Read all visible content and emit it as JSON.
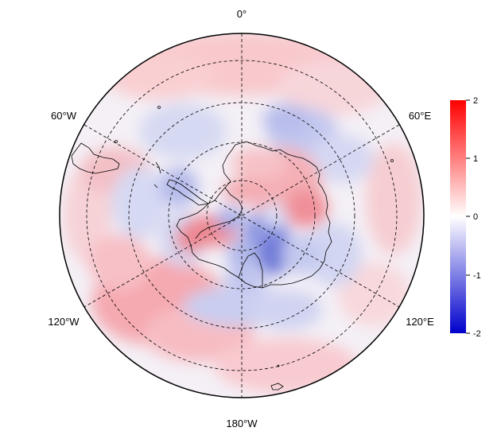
{
  "map": {
    "longitude_labels": {
      "top": "0°",
      "upper_left": "60°W",
      "upper_right": "60°E",
      "lower_left": "120°W",
      "lower_right": "120°E",
      "bottom": "180°W"
    },
    "colorbar": {
      "ticks": [
        "2",
        "1",
        "0",
        "-1",
        "-2"
      ],
      "max_color": "#ff0000",
      "mid_color": "#ffffff",
      "min_color": "#0000cc"
    },
    "projection": "south polar stereographic"
  }
}
